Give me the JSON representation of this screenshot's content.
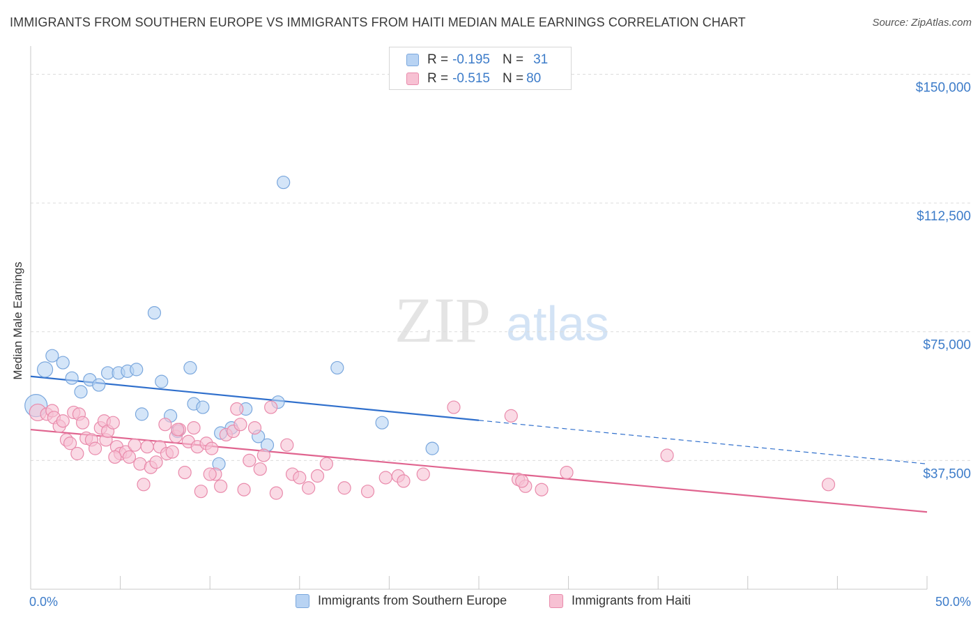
{
  "title": "IMMIGRANTS FROM SOUTHERN EUROPE VS IMMIGRANTS FROM HAITI MEDIAN MALE EARNINGS CORRELATION CHART",
  "source": "Source: ZipAtlas.com",
  "watermark": {
    "zip": "ZIP",
    "atlas": "atlas"
  },
  "legend": {
    "series1": {
      "r_label": "R = ",
      "r_value": "-0.195",
      "n_label": "N = ",
      "n_value": "31"
    },
    "series2": {
      "r_label": "R = ",
      "r_value": "-0.515",
      "n_label": "N = ",
      "n_value": "80"
    }
  },
  "colors": {
    "blue_fill": "#b8d3f3",
    "blue_stroke": "#7aa7dd",
    "blue_line": "#2f6fcc",
    "pink_fill": "#f7c1d3",
    "pink_stroke": "#e98aab",
    "pink_line": "#e0648f",
    "tick_label": "#3d7cc9",
    "grid": "#dcdcdc"
  },
  "chart_data": {
    "type": "scatter",
    "title": "IMMIGRANTS FROM SOUTHERN EUROPE VS IMMIGRANTS FROM HAITI MEDIAN MALE EARNINGS CORRELATION CHART",
    "xlabel": "",
    "ylabel": "Median Male Earnings",
    "xlim": [
      0,
      50
    ],
    "ylim": [
      0,
      157000
    ],
    "x_tick_labels": [
      "0.0%",
      "50.0%"
    ],
    "y_ticks": [
      {
        "value": 37500,
        "label": "$37,500"
      },
      {
        "value": 75000,
        "label": "$75,000"
      },
      {
        "value": 112500,
        "label": "$112,500"
      },
      {
        "value": 150000,
        "label": "$150,000"
      }
    ],
    "grid": true,
    "legend_position": "top-center",
    "series": [
      {
        "name": "Immigrants from Southern Europe",
        "color": "blue",
        "points": [
          [
            0.3,
            53500,
            16
          ],
          [
            0.8,
            64000,
            11
          ],
          [
            1.2,
            68000,
            9
          ],
          [
            1.8,
            66000,
            9
          ],
          [
            2.3,
            61500,
            9
          ],
          [
            2.8,
            57500,
            9
          ],
          [
            3.3,
            61000,
            9
          ],
          [
            3.8,
            59500,
            9
          ],
          [
            4.3,
            63000,
            9
          ],
          [
            4.9,
            63000,
            9
          ],
          [
            5.4,
            63500,
            9
          ],
          [
            5.9,
            64000,
            9
          ],
          [
            6.2,
            51000,
            9
          ],
          [
            6.9,
            80500,
            9
          ],
          [
            7.3,
            60500,
            9
          ],
          [
            7.8,
            50500,
            9
          ],
          [
            8.2,
            46000,
            9
          ],
          [
            8.9,
            64500,
            9
          ],
          [
            9.1,
            54000,
            9
          ],
          [
            9.6,
            53000,
            9
          ],
          [
            10.5,
            36500,
            9
          ],
          [
            10.6,
            45500,
            9
          ],
          [
            11.2,
            47000,
            9
          ],
          [
            12.0,
            52500,
            9
          ],
          [
            12.7,
            44500,
            9
          ],
          [
            13.2,
            42000,
            9
          ],
          [
            13.8,
            54500,
            9
          ],
          [
            14.1,
            118500,
            9
          ],
          [
            17.1,
            64500,
            9
          ],
          [
            19.6,
            48500,
            9
          ],
          [
            22.4,
            41000,
            9
          ]
        ],
        "trend_solid": [
          [
            0,
            62000
          ],
          [
            25,
            49200
          ]
        ],
        "trend_dashed": [
          [
            25,
            49200
          ],
          [
            50,
            36500
          ]
        ]
      },
      {
        "name": "Immigrants from Haiti",
        "color": "pink",
        "points": [
          [
            0.4,
            51500,
            12
          ],
          [
            0.9,
            51000,
            9
          ],
          [
            1.2,
            52000,
            9
          ],
          [
            1.3,
            50000,
            9
          ],
          [
            1.6,
            47500,
            9
          ],
          [
            1.8,
            49000,
            9
          ],
          [
            2.0,
            43500,
            9
          ],
          [
            2.2,
            42500,
            9
          ],
          [
            2.4,
            51500,
            9
          ],
          [
            2.6,
            39500,
            9
          ],
          [
            2.7,
            51000,
            9
          ],
          [
            2.9,
            48500,
            9
          ],
          [
            3.1,
            44000,
            9
          ],
          [
            3.4,
            43500,
            9
          ],
          [
            3.6,
            41000,
            9
          ],
          [
            3.9,
            47000,
            9
          ],
          [
            4.1,
            49000,
            9
          ],
          [
            4.2,
            43500,
            9
          ],
          [
            4.3,
            46000,
            9
          ],
          [
            4.6,
            48500,
            9
          ],
          [
            4.8,
            41500,
            9
          ],
          [
            5.0,
            39500,
            9
          ],
          [
            5.3,
            40000,
            9
          ],
          [
            5.5,
            38500,
            9
          ],
          [
            5.8,
            42000,
            9
          ],
          [
            6.1,
            36500,
            9
          ],
          [
            6.3,
            30500,
            9
          ],
          [
            6.5,
            41500,
            9
          ],
          [
            6.7,
            35500,
            9
          ],
          [
            7.0,
            37000,
            9
          ],
          [
            7.2,
            41500,
            9
          ],
          [
            7.5,
            48000,
            9
          ],
          [
            7.6,
            39500,
            9
          ],
          [
            7.9,
            40000,
            9
          ],
          [
            8.1,
            44500,
            9
          ],
          [
            8.3,
            46500,
            9
          ],
          [
            8.6,
            34000,
            9
          ],
          [
            8.8,
            43000,
            9
          ],
          [
            9.1,
            47000,
            9
          ],
          [
            9.3,
            41500,
            9
          ],
          [
            9.5,
            28500,
            9
          ],
          [
            9.8,
            42500,
            9
          ],
          [
            10.1,
            41000,
            9
          ],
          [
            10.3,
            33500,
            9
          ],
          [
            10.6,
            30000,
            9
          ],
          [
            10.9,
            45000,
            9
          ],
          [
            11.3,
            46000,
            9
          ],
          [
            11.5,
            52500,
            9
          ],
          [
            11.7,
            48000,
            9
          ],
          [
            11.9,
            29000,
            9
          ],
          [
            12.2,
            37500,
            9
          ],
          [
            12.5,
            47000,
            9
          ],
          [
            12.8,
            35000,
            9
          ],
          [
            13.0,
            39000,
            9
          ],
          [
            13.4,
            53000,
            9
          ],
          [
            13.7,
            28000,
            9
          ],
          [
            14.3,
            42000,
            9
          ],
          [
            14.6,
            33500,
            9
          ],
          [
            15.0,
            32500,
            9
          ],
          [
            15.5,
            29500,
            9
          ],
          [
            16.0,
            33000,
            9
          ],
          [
            16.5,
            36500,
            9
          ],
          [
            17.5,
            29500,
            9
          ],
          [
            18.8,
            28500,
            9
          ],
          [
            19.8,
            32500,
            9
          ],
          [
            20.5,
            33000,
            9
          ],
          [
            20.8,
            31500,
            9
          ],
          [
            21.9,
            33500,
            9
          ],
          [
            23.6,
            53000,
            9
          ],
          [
            26.8,
            50500,
            9
          ],
          [
            27.2,
            32000,
            9
          ],
          [
            27.6,
            30000,
            9
          ],
          [
            28.5,
            29000,
            9
          ],
          [
            29.9,
            34000,
            9
          ],
          [
            35.5,
            39000,
            9
          ],
          [
            44.5,
            30500,
            9
          ],
          [
            27.4,
            31500,
            9
          ],
          [
            10.0,
            33500,
            9
          ],
          [
            8.2,
            46500,
            9
          ],
          [
            4.7,
            38500,
            9
          ]
        ],
        "trend_solid": [
          [
            0,
            46500
          ],
          [
            50,
            22500
          ]
        ]
      }
    ]
  },
  "bottom_legend": {
    "series1_label": "Immigrants from Southern Europe",
    "series2_label": "Immigrants from Haiti"
  }
}
